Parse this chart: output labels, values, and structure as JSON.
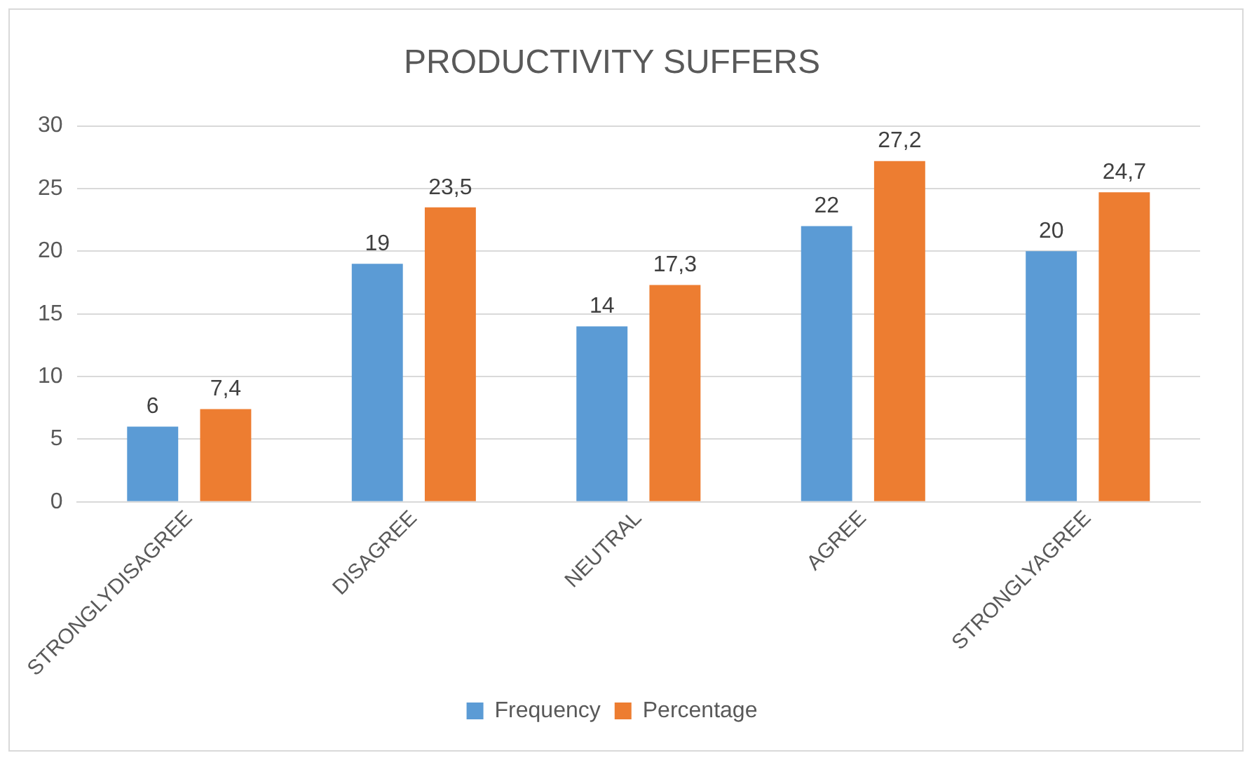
{
  "chart_data": {
    "type": "bar",
    "title": "PRODUCTIVITY SUFFERS",
    "categories": [
      "STRONGLYDISAGREE",
      "DISAGREE",
      "NEUTRAL",
      "AGREE",
      "STRONGLYAGREE"
    ],
    "series": [
      {
        "name": "Frequency",
        "color": "#5b9bd5",
        "values": [
          6,
          19,
          14,
          22,
          20
        ],
        "value_labels": [
          "6",
          "19",
          "14",
          "22",
          "20"
        ]
      },
      {
        "name": "Percentage",
        "color": "#ed7d31",
        "values": [
          7.4,
          23.5,
          17.3,
          27.2,
          24.7
        ],
        "value_labels": [
          "7,4",
          "23,5",
          "17,3",
          "27,2",
          "24,7"
        ]
      }
    ],
    "ylim": [
      0,
      30
    ],
    "yticks": [
      0,
      5,
      10,
      15,
      20,
      25,
      30
    ],
    "grid": "y",
    "legend": "bottom"
  }
}
